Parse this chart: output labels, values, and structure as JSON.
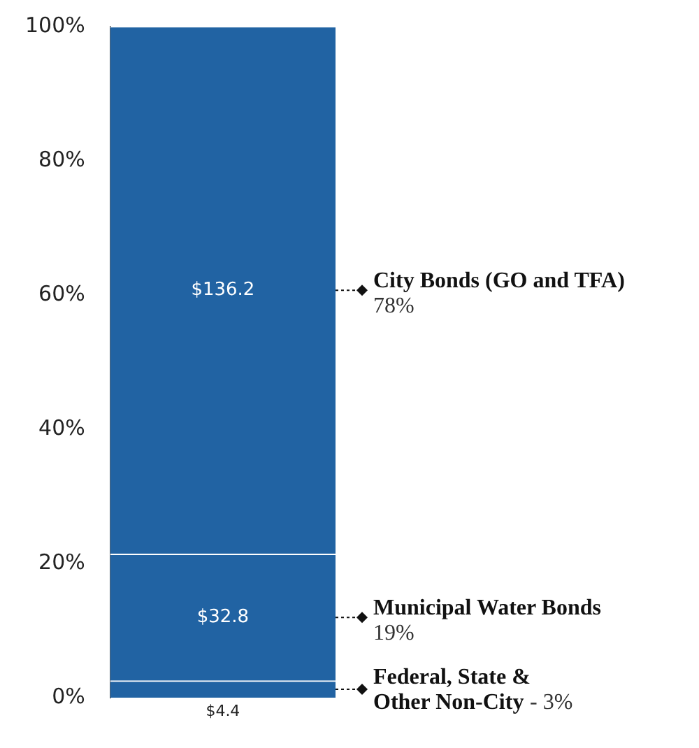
{
  "chart_data": {
    "type": "bar",
    "stacked": true,
    "categories": [
      null
    ],
    "series": [
      {
        "name": "Federal, State & Other Non-City",
        "color": "#2163a3",
        "values": [
          2.5
        ]
      },
      {
        "name": "Municipal Water Bonds",
        "color": "#2163a3",
        "values": [
          18.9
        ]
      },
      {
        "name": "City Bonds (GO and TFA)",
        "color": "#2163a3",
        "values": [
          78.6
        ]
      }
    ],
    "annotations": [
      "$4.4",
      "$32.8",
      "$136.2",
      "- 3%",
      "19%",
      "78%"
    ],
    "ylim": [
      0,
      100
    ],
    "yticks": [
      {
        "value": 0,
        "label": "0%"
      },
      {
        "value": 20,
        "label": "20%"
      },
      {
        "value": 40,
        "label": "40%"
      },
      {
        "value": 60,
        "label": "60%"
      },
      {
        "value": 80,
        "label": "80%"
      },
      {
        "value": 100,
        "label": "100%"
      }
    ],
    "grid": false,
    "legend": false,
    "tick_labels": "y"
  }
}
